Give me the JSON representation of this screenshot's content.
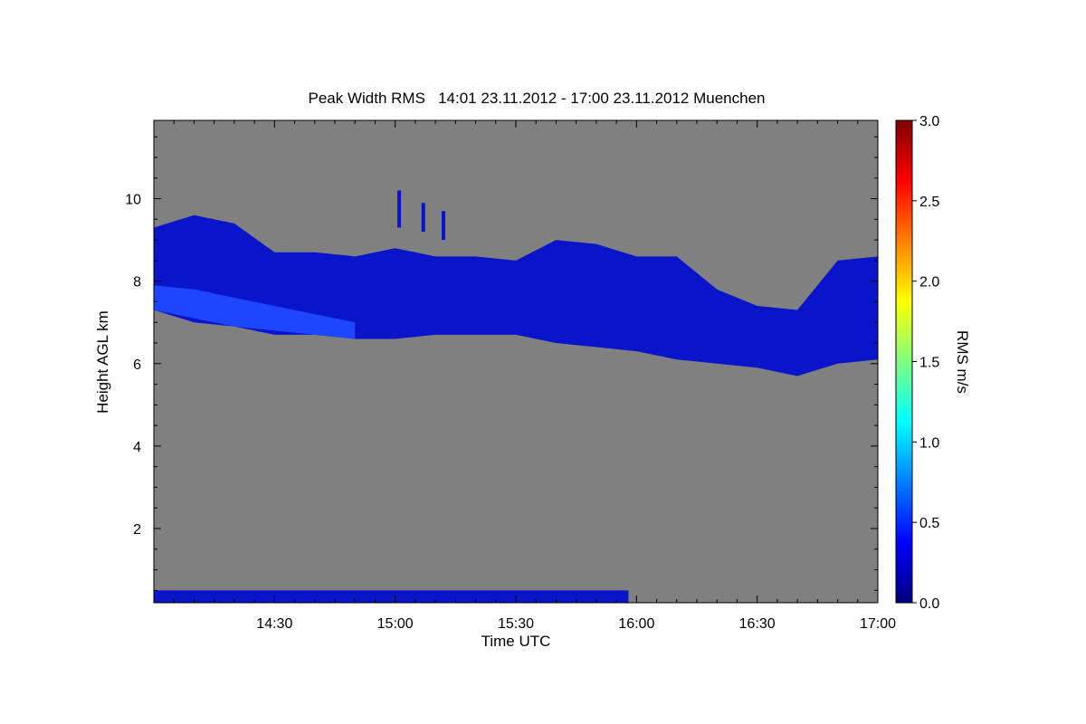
{
  "chart_data": {
    "type": "heatmap",
    "title": "Peak Width RMS   14:01 23.11.2012 - 17:00 23.11.2012 Muenchen",
    "xlabel": "Time UTC",
    "ylabel": "Height AGL km",
    "x_ticks": [
      "14:30",
      "15:00",
      "15:30",
      "16:00",
      "16:30",
      "17:00"
    ],
    "x_tick_minutes": [
      30,
      60,
      90,
      120,
      150,
      180
    ],
    "xlim_minutes": [
      0,
      180
    ],
    "y_ticks": [
      2,
      4,
      6,
      8,
      10
    ],
    "ylim": [
      0.2,
      11.9
    ],
    "colorbar": {
      "label": "RMS m/s",
      "range": [
        0.0,
        3.0
      ],
      "ticks": [
        "0.0",
        "0.5",
        "1.0",
        "1.5",
        "2.0",
        "2.5",
        "3.0"
      ],
      "tick_values": [
        0.0,
        0.5,
        1.0,
        1.5,
        2.0,
        2.5,
        3.0
      ],
      "colormap": [
        "#00007f",
        "#0000ff",
        "#007fff",
        "#00ffff",
        "#7fff7f",
        "#ffff00",
        "#ff7f00",
        "#ff0000",
        "#7f0000"
      ]
    },
    "background_color": "#808080",
    "cloud_layer": {
      "rms_value": 0.3,
      "color": "#0a14c8",
      "time_minutes": [
        0,
        10,
        20,
        30,
        40,
        50,
        60,
        70,
        80,
        90,
        100,
        110,
        120,
        130,
        140,
        150,
        160,
        170,
        180
      ],
      "top_km": [
        9.3,
        9.6,
        9.4,
        8.7,
        8.7,
        8.6,
        8.8,
        8.6,
        8.6,
        8.5,
        9.0,
        8.9,
        8.6,
        8.6,
        7.8,
        7.4,
        7.3,
        8.5,
        8.6
      ],
      "base_km": [
        7.3,
        7.0,
        6.9,
        6.7,
        6.7,
        6.6,
        6.6,
        6.7,
        6.7,
        6.7,
        6.5,
        6.4,
        6.3,
        6.1,
        6.0,
        5.9,
        5.7,
        6.0,
        6.1
      ]
    },
    "bright_streak": {
      "rms_value": 0.45,
      "color": "#1e46ff",
      "time_minutes": [
        0,
        10,
        20,
        30,
        40,
        50
      ],
      "top_km": [
        7.9,
        7.8,
        7.6,
        7.4,
        7.2,
        7.0
      ],
      "base_km": [
        7.3,
        7.1,
        6.9,
        6.8,
        6.7,
        6.6
      ]
    },
    "fall_streaks": [
      {
        "time_minutes": 61,
        "base_km": 9.3,
        "top_km": 10.2
      },
      {
        "time_minutes": 67,
        "base_km": 9.2,
        "top_km": 9.9
      },
      {
        "time_minutes": 72,
        "base_km": 9.0,
        "top_km": 9.7
      }
    ],
    "ground_clutter": {
      "time_minutes": [
        0,
        118
      ],
      "base_km": 0.2,
      "top_km": 0.5
    }
  }
}
